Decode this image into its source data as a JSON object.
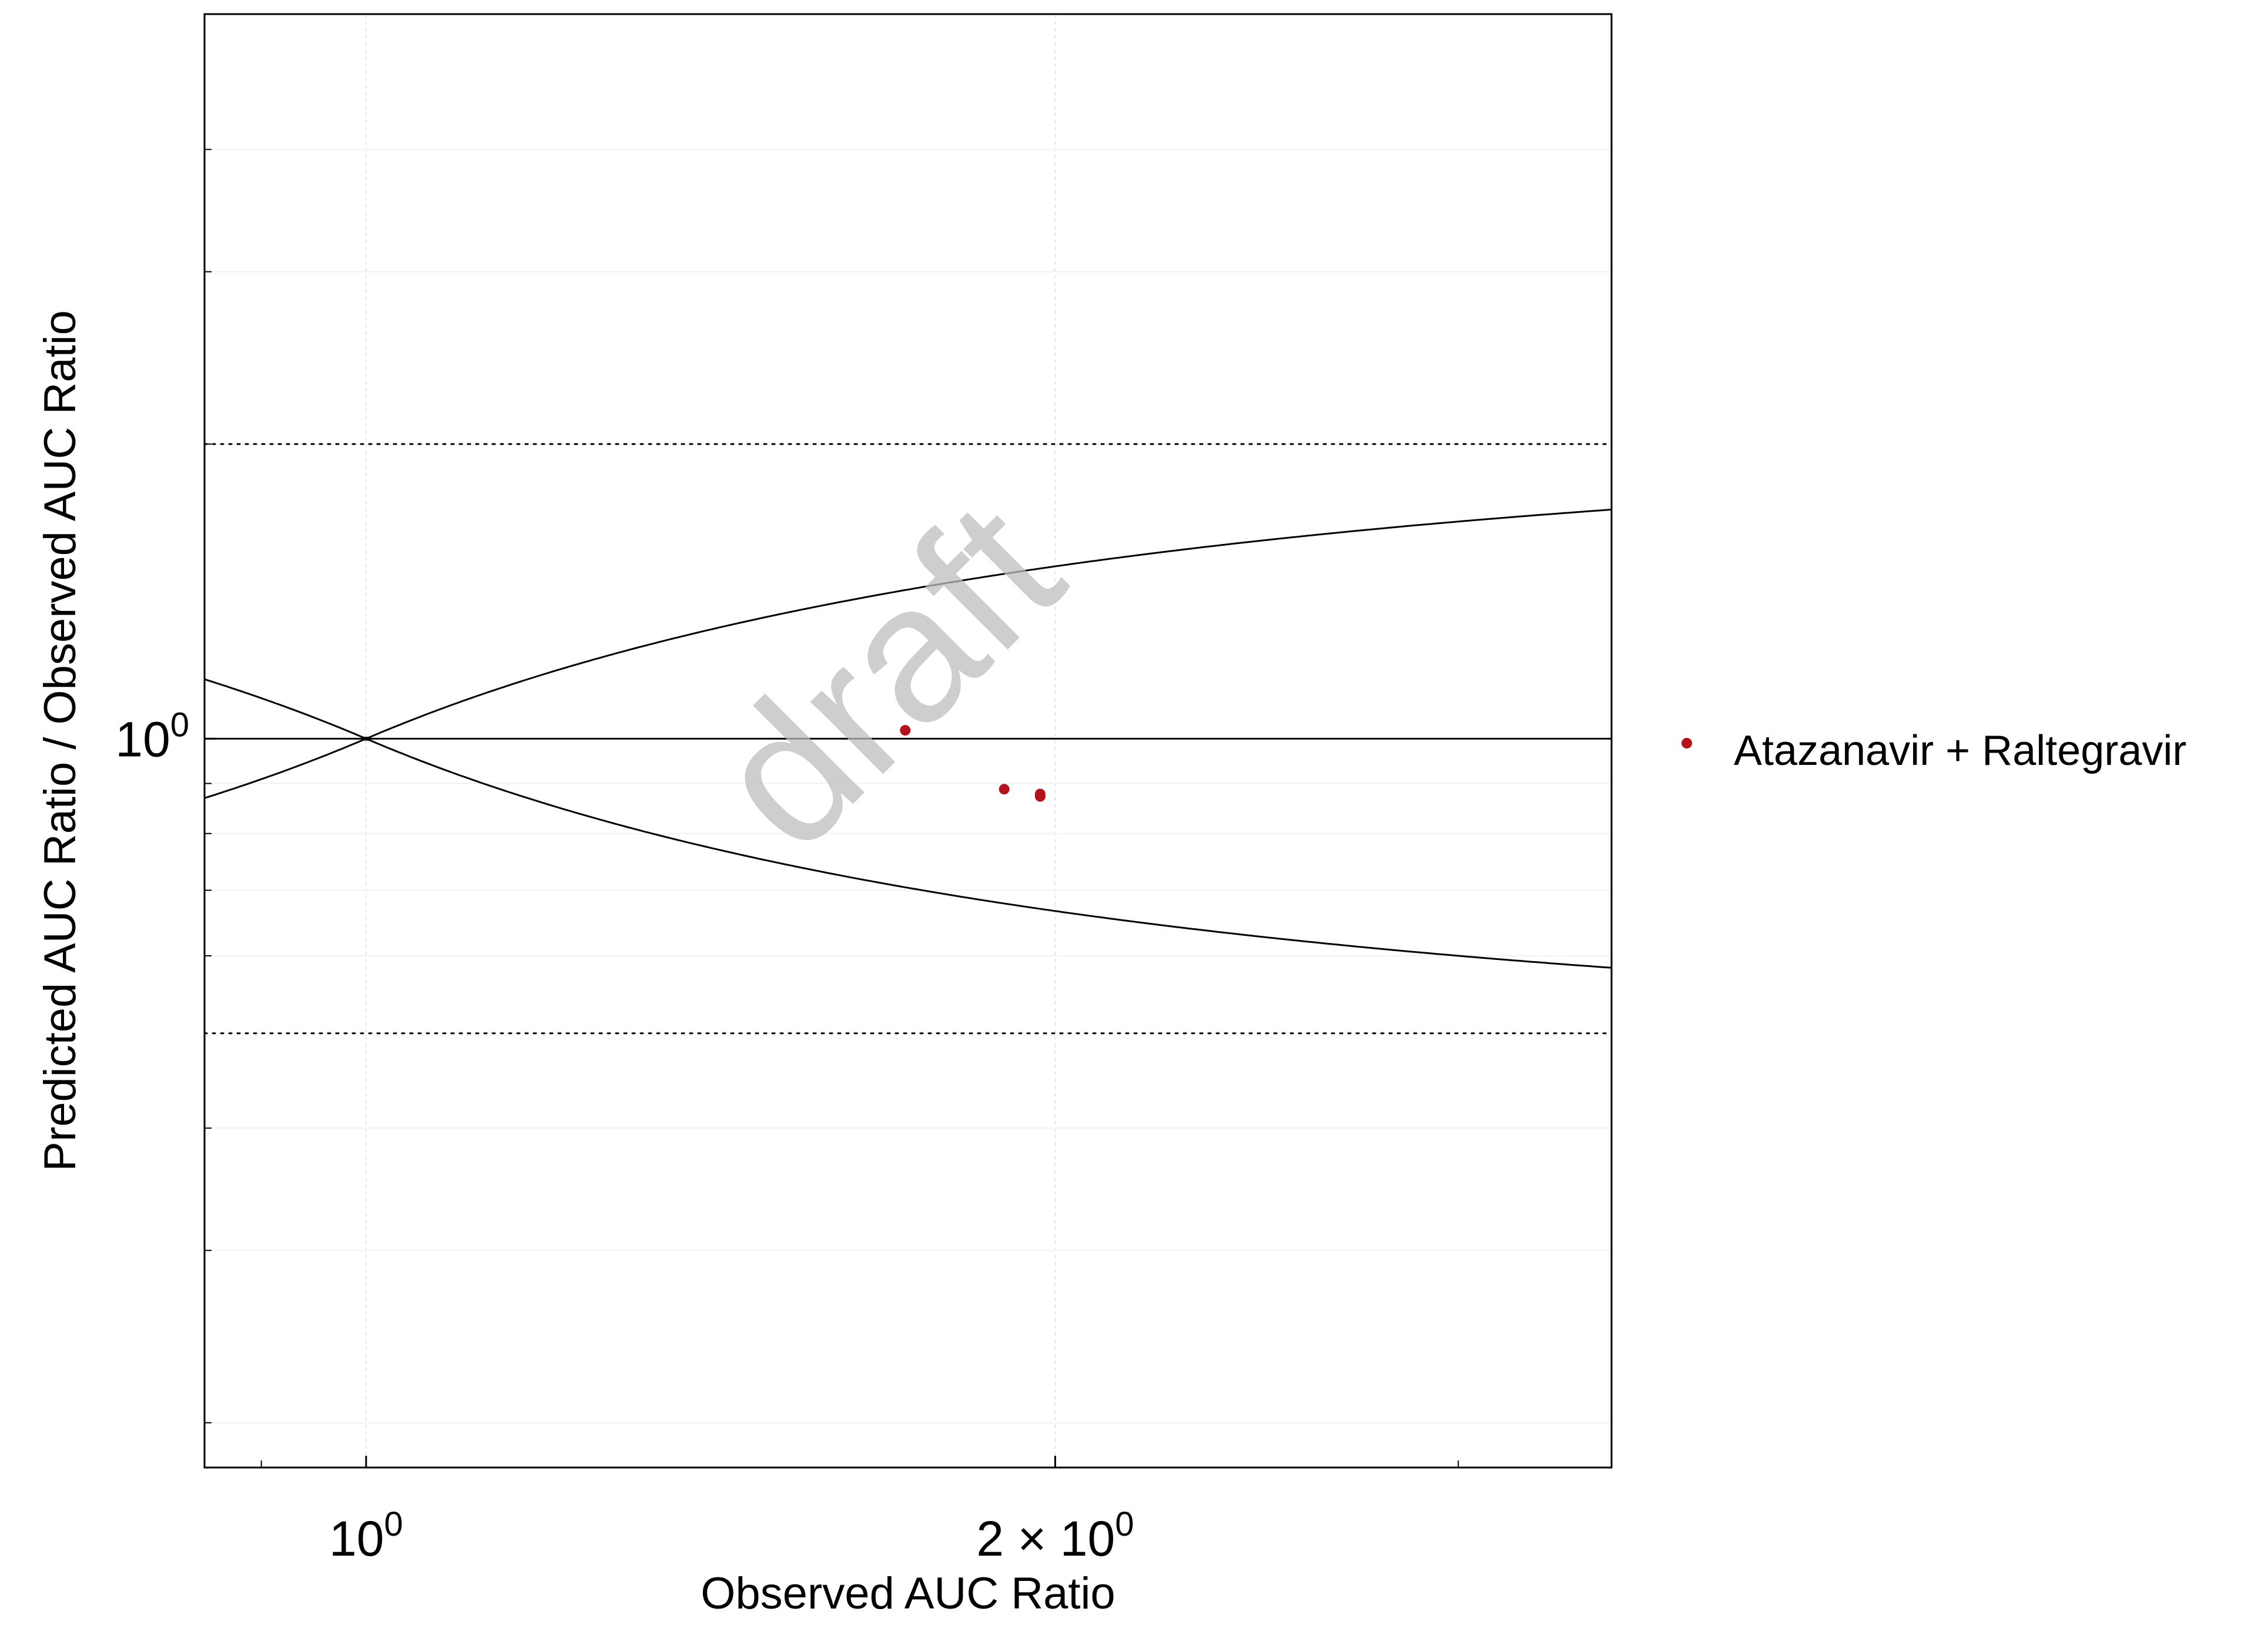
{
  "chart_data": {
    "type": "scatter",
    "xlabel": "Observed AUC Ratio",
    "ylabel": "Predicted AUC Ratio / Observed AUC Ratio",
    "x_scale": "log",
    "y_scale": "log",
    "xlim": [
      0.85,
      3.5
    ],
    "ylim": [
      0.18,
      5.5
    ],
    "x_ticks": [
      {
        "value": 1,
        "base": "10",
        "exp": "0",
        "prefix": ""
      },
      {
        "value": 2,
        "base": "10",
        "exp": "0",
        "prefix": "2 × "
      }
    ],
    "x_minor_ticks": [
      0.9,
      3
    ],
    "y_ticks": [
      {
        "value": 1,
        "base": "10",
        "exp": "0",
        "prefix": ""
      }
    ],
    "y_minor_ticks": [
      0.2,
      0.3,
      0.4,
      0.6,
      0.7,
      0.8,
      0.9,
      2,
      3,
      4
    ],
    "grid": true,
    "identity_line": 1,
    "limit_lines_dotted": [
      0.5,
      2
    ],
    "guest_limits": "curves",
    "legend_position": "right",
    "series": [
      {
        "name": "Atazanavir + Raltegravir",
        "color": "#b5121b",
        "points": [
          {
            "x": 1.72,
            "y": 1.02
          },
          {
            "x": 1.9,
            "y": 0.888
          },
          {
            "x": 1.97,
            "y": 0.878
          },
          {
            "x": 1.97,
            "y": 0.873
          }
        ]
      }
    ],
    "watermark": "draft"
  }
}
